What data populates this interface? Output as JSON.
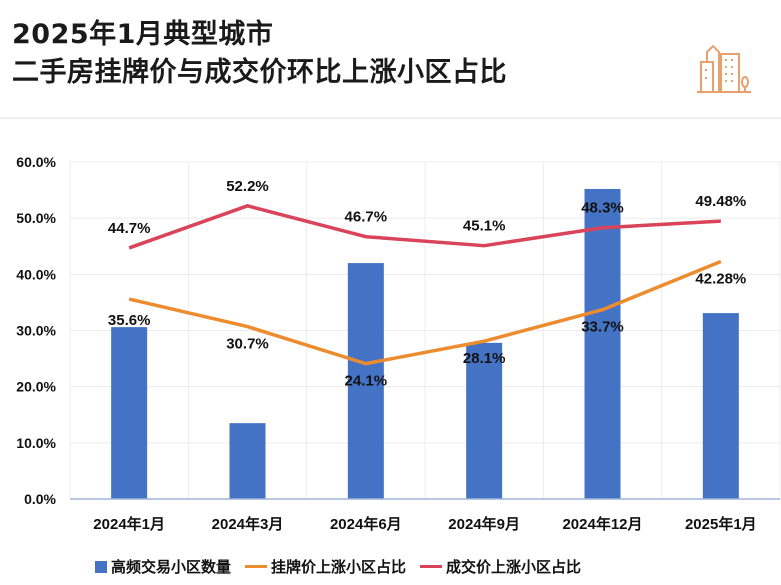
{
  "title_line1": "2025年1月典型城市",
  "title_line2": "二手房挂牌价与成交价环比上涨小区占比",
  "logo_icon": "city-buildings-icon",
  "colors": {
    "bar": "#4472C4",
    "listing": "#ED8B2F",
    "deal": "#D9445A",
    "logo": "#E9A070"
  },
  "chart_data": {
    "type": "bar+line",
    "categories": [
      "2024年1月",
      "2024年3月",
      "2024年6月",
      "2024年9月",
      "2024年12月",
      "2025年1月"
    ],
    "yticks": [
      "0.0%",
      "10.0%",
      "20.0%",
      "30.0%",
      "40.0%",
      "50.0%",
      "60.0%"
    ],
    "ylim": [
      0,
      60
    ],
    "grid": true,
    "legend_placement": "bottom",
    "series": [
      {
        "name": "高频交易小区数量",
        "type": "bar",
        "values": [
          30.6,
          13.5,
          42.0,
          27.8,
          55.2,
          33.1
        ],
        "labels": []
      },
      {
        "name": "挂牌价上涨小区占比",
        "type": "line",
        "values": [
          35.6,
          30.7,
          24.1,
          28.1,
          33.7,
          42.28
        ],
        "labels": [
          "35.6%",
          "30.7%",
          "24.1%",
          "28.1%",
          "33.7%",
          "42.28%"
        ]
      },
      {
        "name": "成交价上涨小区占比",
        "type": "line",
        "values": [
          44.7,
          52.2,
          46.7,
          45.1,
          48.3,
          49.48
        ],
        "labels": [
          "44.7%",
          "52.2%",
          "46.7%",
          "45.1%",
          "48.3%",
          "49.48%"
        ]
      }
    ]
  }
}
